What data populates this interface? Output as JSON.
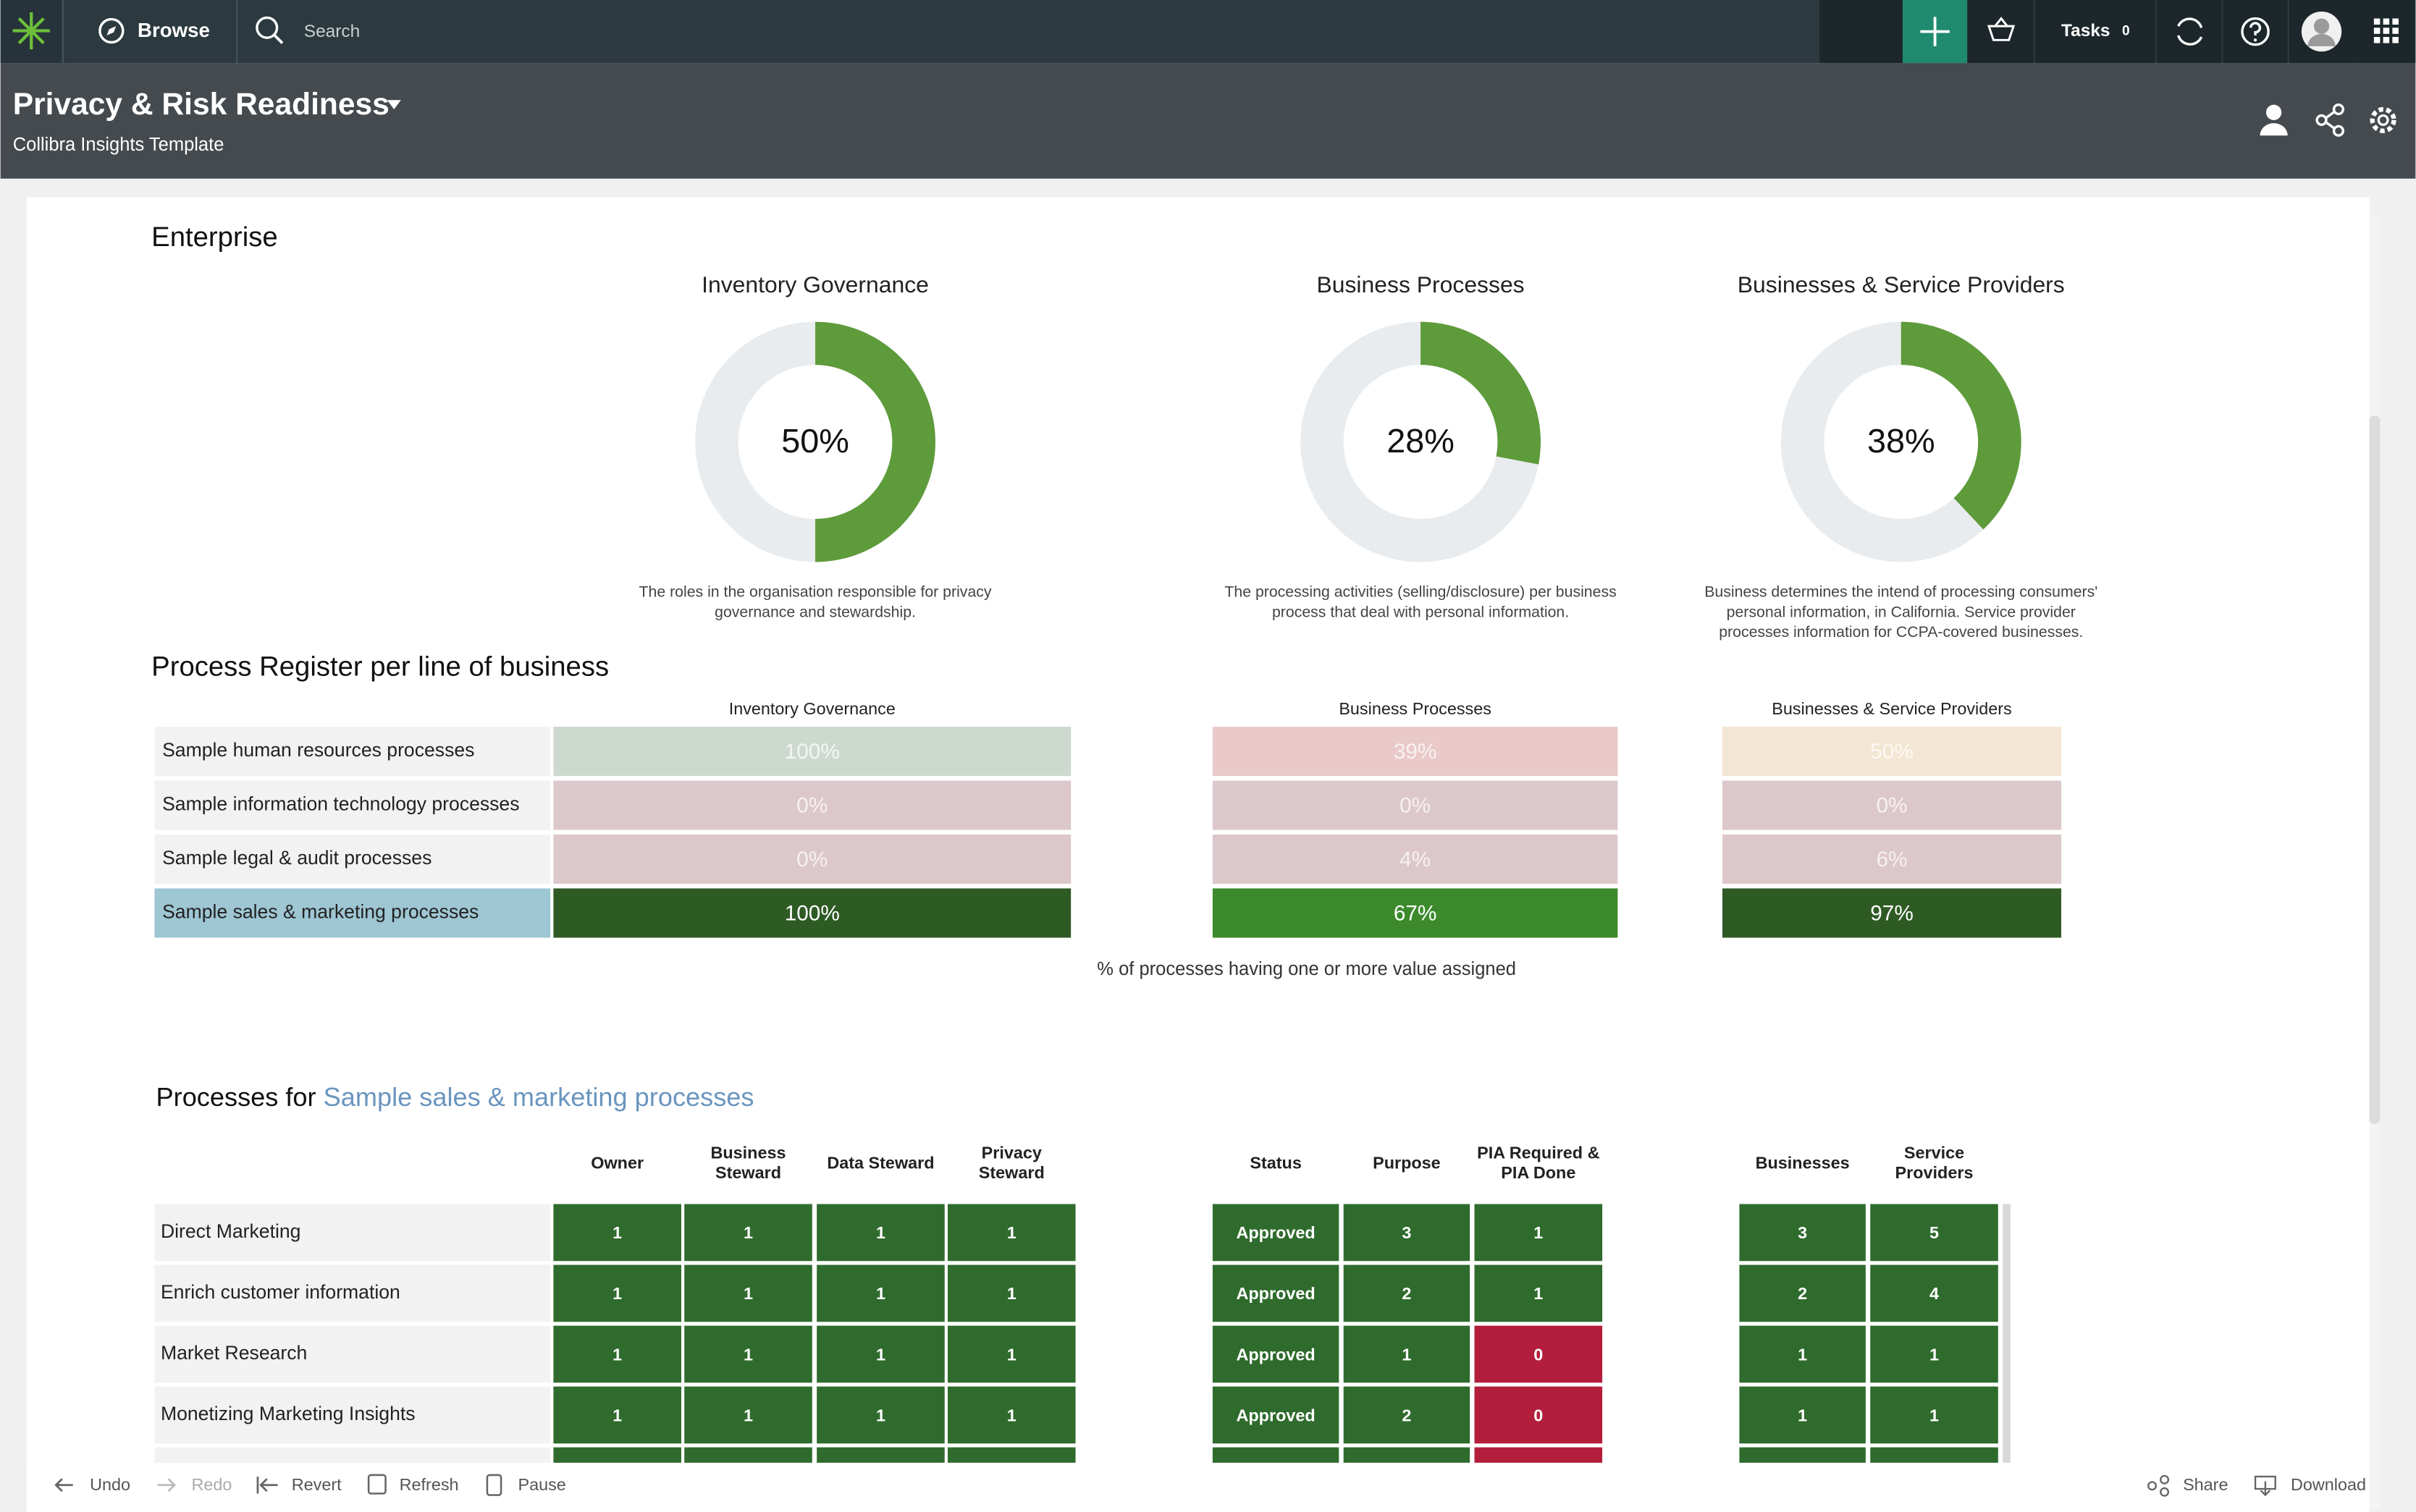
{
  "nav": {
    "browse": "Browse",
    "search": "Search",
    "tasks": "Tasks",
    "tasks_count": "0"
  },
  "header": {
    "title": "Privacy & Risk Readiness",
    "subtitle": "Collibra Insights Template"
  },
  "enterprise": {
    "title": "Enterprise",
    "track_color": "#e9ecee",
    "donuts": [
      {
        "title": "Inventory Governance",
        "value": 50,
        "label": "50%",
        "color": "#5e9b3b",
        "description": [
          "The roles in the organisation responsible for privacy",
          "governance and stewardship."
        ]
      },
      {
        "title": "Business Processes",
        "value": 28,
        "label": "28%",
        "color": "#5e9b3b",
        "description": [
          "The processing activities (selling/disclosure) per business",
          "process that deal with personal information."
        ]
      },
      {
        "title": "Businesses & Service Providers",
        "value": 38,
        "label": "38%",
        "color": "#5e9b3b",
        "description": [
          "Business determines the intend of processing consumers'",
          "personal information, in California. Service provider",
          "processes information for CCPA-covered businesses."
        ]
      }
    ]
  },
  "register": {
    "title": "Process Register per line of business",
    "groups": [
      "Inventory Governance",
      "Business Processes",
      "Businesses & Service Providers"
    ],
    "rows": [
      {
        "name": "Sample human resources processes",
        "name_bg": "#f2f2f2",
        "cells": [
          "100%",
          "39%",
          "50%"
        ],
        "colors": [
          "#cdd9cf",
          "#e9c9c9",
          "#f3e6d3"
        ]
      },
      {
        "name": "Sample information technology processes",
        "name_bg": "#f2f2f2",
        "cells": [
          "0%",
          "0%",
          "0%"
        ],
        "colors": [
          "#dcc8ca",
          "#dcc8ca",
          "#dcc8ca"
        ]
      },
      {
        "name": "Sample legal & audit processes",
        "name_bg": "#f2f2f2",
        "cells": [
          "0%",
          "4%",
          "6%"
        ],
        "colors": [
          "#dcc8ca",
          "#dcc8ca",
          "#dcc8ca"
        ]
      },
      {
        "name": "Sample sales & marketing processes",
        "name_bg": "#9ec6d3",
        "cells": [
          "100%",
          "67%",
          "97%"
        ],
        "colors": [
          "#2e5a24",
          "#3c8a2c",
          "#2e5a24"
        ]
      }
    ],
    "note": "% of processes having one or more value assigned"
  },
  "processes": {
    "title_prefix": "Processes for",
    "title_link": "Sample sales & marketing processes",
    "columns": [
      [
        "Owner"
      ],
      [
        "Business",
        "Steward"
      ],
      [
        "Data Steward"
      ],
      [
        "Privacy",
        "Steward"
      ],
      [
        "Status"
      ],
      [
        "Purpose"
      ],
      [
        "PIA Required &",
        "PIA Done"
      ],
      [
        "Businesses"
      ],
      [
        "Service",
        "Providers"
      ]
    ],
    "rows": [
      {
        "name": "Direct Marketing",
        "cells": [
          "1",
          "1",
          "1",
          "1",
          "Approved",
          "3",
          "1",
          "3",
          "5"
        ],
        "colors": [
          "#2f6b2d",
          "#2f6b2d",
          "#2f6b2d",
          "#2f6b2d",
          "#2f6b2d",
          "#2f6b2d",
          "#2f6b2d",
          "#2f6b2d",
          "#2f6b2d"
        ]
      },
      {
        "name": "Enrich customer information",
        "cells": [
          "1",
          "1",
          "1",
          "1",
          "Approved",
          "2",
          "1",
          "2",
          "4"
        ],
        "colors": [
          "#2f6b2d",
          "#2f6b2d",
          "#2f6b2d",
          "#2f6b2d",
          "#2f6b2d",
          "#2f6b2d",
          "#2f6b2d",
          "#2f6b2d",
          "#2f6b2d"
        ]
      },
      {
        "name": "Market Research",
        "cells": [
          "1",
          "1",
          "1",
          "1",
          "Approved",
          "1",
          "0",
          "1",
          "1"
        ],
        "colors": [
          "#2f6b2d",
          "#2f6b2d",
          "#2f6b2d",
          "#2f6b2d",
          "#2f6b2d",
          "#2f6b2d",
          "#b31e3c",
          "#2f6b2d",
          "#2f6b2d"
        ]
      },
      {
        "name": "Monetizing Marketing Insights",
        "cells": [
          "1",
          "1",
          "1",
          "1",
          "Approved",
          "2",
          "0",
          "1",
          "1"
        ],
        "colors": [
          "#2f6b2d",
          "#2f6b2d",
          "#2f6b2d",
          "#2f6b2d",
          "#2f6b2d",
          "#2f6b2d",
          "#b31e3c",
          "#2f6b2d",
          "#2f6b2d"
        ]
      }
    ]
  },
  "toolbar": {
    "undo": "Undo",
    "redo": "Redo",
    "revert": "Revert",
    "refresh": "Refresh",
    "pause": "Pause",
    "share": "Share",
    "download": "Download"
  }
}
